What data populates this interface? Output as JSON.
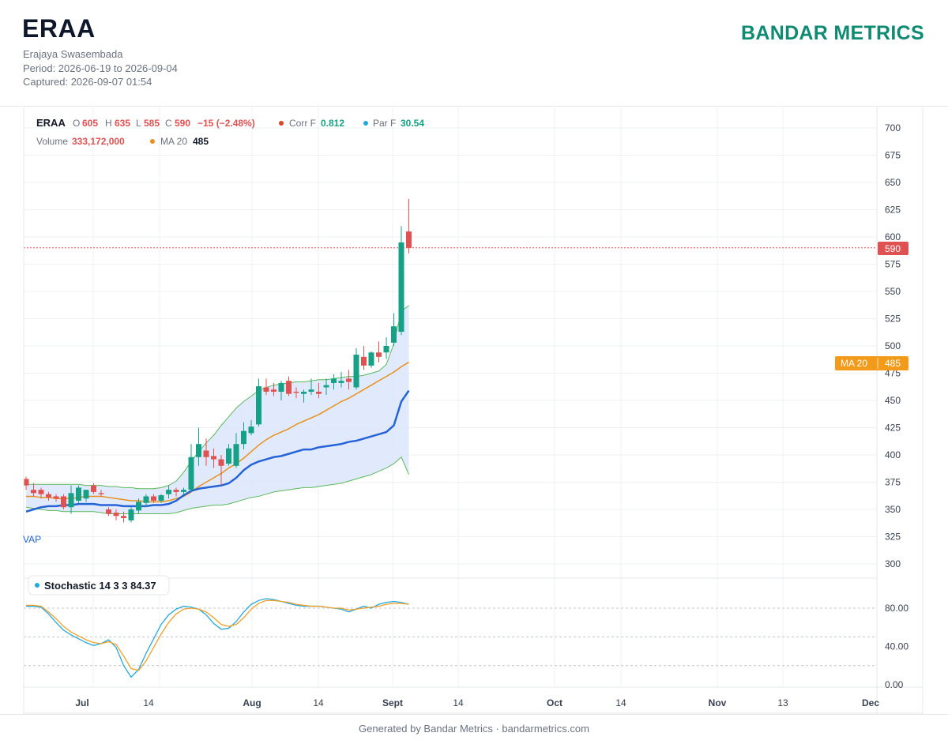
{
  "header": {
    "ticker": "ERAA",
    "company": "Erajaya Swasembada",
    "period": "Period: 2026-06-19 to 2026-09-04",
    "captured": "Captured: 2026-09-07 01:54",
    "brand": "BANDAR METRICS"
  },
  "legend": {
    "symbol": "ERAA",
    "o_label": "O",
    "o_value": "605",
    "h_label": "H",
    "h_value": "635",
    "l_label": "L",
    "l_value": "585",
    "c_label": "C",
    "c_value": "590",
    "change": "−15 (−2.48%)",
    "corr_label": "Corr F",
    "corr_value": "0.812",
    "par_label": "Par F",
    "par_value": "30.54",
    "volume_label": "Volume",
    "volume_value": "333,172,000",
    "ma_label": "MA 20",
    "ma_value": "485"
  },
  "badges": {
    "price": "590",
    "ma_label": "MA 20",
    "ma_value": "485"
  },
  "stochastic_label": "Stochastic 14 3 3 84.37",
  "vwap_label": "VAP",
  "footer": "Generated by Bandar Metrics · bandarmetrics.com",
  "colors": {
    "up": "#16a085",
    "down": "#e05252",
    "ma": "#e8901c",
    "vwap": "#2563d6",
    "band": "#5cb85c",
    "stoch_k": "#23a8e0",
    "stoch_d": "#f0a02a",
    "brand": "#0f8a73"
  },
  "chart_data": [
    {
      "type": "candlestick",
      "y_ticks": [
        300,
        325,
        350,
        375,
        400,
        425,
        450,
        475,
        500,
        525,
        550,
        575,
        600,
        625,
        650,
        675,
        700
      ],
      "ylim": [
        290,
        710
      ],
      "x_ticks": [
        "Jul",
        "14",
        "Aug",
        "14",
        "Sept",
        "14",
        "Oct",
        "14",
        "Nov",
        "13",
        "Dec"
      ],
      "candles": [
        {
          "o": 378,
          "h": 380,
          "l": 368,
          "c": 372
        },
        {
          "o": 368,
          "h": 374,
          "l": 362,
          "c": 365
        },
        {
          "o": 368,
          "h": 370,
          "l": 360,
          "c": 364
        },
        {
          "o": 364,
          "h": 366,
          "l": 358,
          "c": 361
        },
        {
          "o": 362,
          "h": 364,
          "l": 357,
          "c": 360
        },
        {
          "o": 362,
          "h": 364,
          "l": 350,
          "c": 352
        },
        {
          "o": 352,
          "h": 372,
          "l": 346,
          "c": 365
        },
        {
          "o": 358,
          "h": 372,
          "l": 356,
          "c": 370
        },
        {
          "o": 360,
          "h": 368,
          "l": 357,
          "c": 368
        },
        {
          "o": 372,
          "h": 374,
          "l": 364,
          "c": 366
        },
        {
          "o": 365,
          "h": 368,
          "l": 362,
          "c": 364
        },
        {
          "o": 350,
          "h": 352,
          "l": 344,
          "c": 346
        },
        {
          "o": 347,
          "h": 350,
          "l": 340,
          "c": 344
        },
        {
          "o": 344,
          "h": 348,
          "l": 338,
          "c": 342
        },
        {
          "o": 340,
          "h": 352,
          "l": 338,
          "c": 350
        },
        {
          "o": 349,
          "h": 360,
          "l": 346,
          "c": 357
        },
        {
          "o": 356,
          "h": 364,
          "l": 352,
          "c": 362
        },
        {
          "o": 362,
          "h": 364,
          "l": 356,
          "c": 358
        },
        {
          "o": 358,
          "h": 364,
          "l": 356,
          "c": 363
        },
        {
          "o": 364,
          "h": 372,
          "l": 360,
          "c": 368
        },
        {
          "o": 368,
          "h": 370,
          "l": 362,
          "c": 366
        },
        {
          "o": 366,
          "h": 370,
          "l": 364,
          "c": 368
        },
        {
          "o": 368,
          "h": 410,
          "l": 366,
          "c": 398
        },
        {
          "o": 398,
          "h": 425,
          "l": 390,
          "c": 410
        },
        {
          "o": 404,
          "h": 415,
          "l": 390,
          "c": 398
        },
        {
          "o": 399,
          "h": 406,
          "l": 388,
          "c": 396
        },
        {
          "o": 396,
          "h": 400,
          "l": 372,
          "c": 390
        },
        {
          "o": 392,
          "h": 410,
          "l": 390,
          "c": 406
        },
        {
          "o": 390,
          "h": 420,
          "l": 388,
          "c": 410
        },
        {
          "o": 410,
          "h": 430,
          "l": 405,
          "c": 422
        },
        {
          "o": 420,
          "h": 432,
          "l": 418,
          "c": 426
        },
        {
          "o": 428,
          "h": 470,
          "l": 426,
          "c": 463
        },
        {
          "o": 462,
          "h": 470,
          "l": 455,
          "c": 458
        },
        {
          "o": 460,
          "h": 466,
          "l": 454,
          "c": 458
        },
        {
          "o": 458,
          "h": 468,
          "l": 450,
          "c": 466
        },
        {
          "o": 468,
          "h": 472,
          "l": 454,
          "c": 456
        },
        {
          "o": 458,
          "h": 462,
          "l": 452,
          "c": 457
        },
        {
          "o": 456,
          "h": 460,
          "l": 448,
          "c": 458
        },
        {
          "o": 458,
          "h": 470,
          "l": 455,
          "c": 460
        },
        {
          "o": 458,
          "h": 466,
          "l": 452,
          "c": 456
        },
        {
          "o": 462,
          "h": 470,
          "l": 455,
          "c": 464
        },
        {
          "o": 466,
          "h": 474,
          "l": 460,
          "c": 470
        },
        {
          "o": 466,
          "h": 476,
          "l": 462,
          "c": 468
        },
        {
          "o": 470,
          "h": 478,
          "l": 460,
          "c": 467
        },
        {
          "o": 462,
          "h": 498,
          "l": 460,
          "c": 492
        },
        {
          "o": 490,
          "h": 500,
          "l": 478,
          "c": 482
        },
        {
          "o": 482,
          "h": 495,
          "l": 480,
          "c": 494
        },
        {
          "o": 494,
          "h": 504,
          "l": 485,
          "c": 490
        },
        {
          "o": 494,
          "h": 508,
          "l": 488,
          "c": 500
        },
        {
          "o": 503,
          "h": 530,
          "l": 500,
          "c": 518
        },
        {
          "o": 513,
          "h": 610,
          "l": 510,
          "c": 595
        },
        {
          "o": 605,
          "h": 635,
          "l": 585,
          "c": 590
        }
      ],
      "ma20": [
        362,
        362,
        361,
        361,
        360,
        360,
        360,
        361,
        362,
        362,
        362,
        361,
        360,
        359,
        358,
        358,
        357,
        357,
        357,
        358,
        360,
        362,
        366,
        371,
        375,
        379,
        383,
        388,
        392,
        397,
        403,
        409,
        414,
        418,
        421,
        424,
        428,
        431,
        434,
        437,
        441,
        445,
        449,
        452,
        456,
        460,
        464,
        468,
        472,
        476,
        481,
        485
      ],
      "vwap": [
        348,
        350,
        352,
        353,
        353,
        354,
        354,
        355,
        355,
        355,
        354,
        354,
        354,
        353,
        353,
        353,
        353,
        354,
        354,
        355,
        358,
        363,
        367,
        369,
        370,
        371,
        372,
        374,
        379,
        386,
        391,
        394,
        396,
        398,
        399,
        401,
        403,
        405,
        405,
        407,
        408,
        409,
        410,
        412,
        413,
        415,
        417,
        419,
        421,
        427,
        449,
        459
      ],
      "band_upper": [
        373,
        373,
        373,
        373,
        373,
        373,
        373,
        373,
        372,
        372,
        372,
        371,
        371,
        370,
        370,
        369,
        369,
        369,
        370,
        372,
        376,
        384,
        394,
        403,
        411,
        418,
        427,
        435,
        443,
        449,
        454,
        459,
        462,
        464,
        465,
        466,
        467,
        467,
        468,
        469,
        469,
        470,
        471,
        472,
        472,
        473,
        475,
        477,
        483,
        502,
        532,
        537
      ],
      "band_lower": [
        352,
        351,
        350,
        349,
        349,
        348,
        348,
        348,
        348,
        348,
        347,
        346,
        346,
        346,
        346,
        346,
        346,
        346,
        346,
        346,
        347,
        349,
        351,
        352,
        353,
        354,
        354,
        355,
        357,
        359,
        361,
        362,
        364,
        366,
        367,
        368,
        369,
        370,
        370,
        371,
        372,
        373,
        374,
        376,
        378,
        380,
        382,
        385,
        388,
        392,
        398,
        382
      ]
    },
    {
      "type": "line",
      "title": "Stochastic 14 3 3 84.37",
      "y_ticks": [
        0,
        40,
        80
      ],
      "ylim": [
        -5,
        112
      ],
      "series": [
        {
          "values": [
            82,
            82,
            81,
            74,
            65,
            57,
            52,
            48,
            44,
            41,
            43,
            47,
            39,
            20,
            8,
            16,
            33,
            48,
            63,
            73,
            79,
            82,
            81,
            79,
            73,
            64,
            58,
            59,
            66,
            76,
            84,
            88,
            90,
            89,
            87,
            85,
            83,
            82,
            82,
            82,
            81,
            80,
            79,
            76,
            79,
            82,
            80,
            84,
            86,
            87,
            86,
            84
          ]
        },
        {
          "values": [
            83,
            83,
            82,
            76,
            69,
            61,
            55,
            51,
            47,
            44,
            43,
            45,
            42,
            30,
            17,
            15,
            25,
            39,
            53,
            65,
            74,
            79,
            80,
            79,
            76,
            70,
            63,
            61,
            63,
            70,
            79,
            85,
            88,
            88,
            87,
            86,
            84,
            83,
            82,
            82,
            81,
            80,
            80,
            78,
            79,
            80,
            81,
            82,
            84,
            85,
            85,
            84
          ]
        }
      ]
    }
  ]
}
